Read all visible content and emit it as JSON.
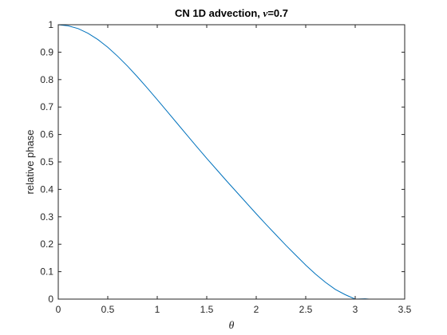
{
  "chart_data": {
    "type": "line",
    "title_prefix": "CN 1D advection, ",
    "title_symbol": "ν",
    "title_suffix": "=0.7",
    "xlabel": "θ",
    "ylabel": "relative phase",
    "xlim": [
      0,
      3.5
    ],
    "ylim": [
      0,
      1
    ],
    "xticks": [
      "0",
      "0.5",
      "1",
      "1.5",
      "2",
      "2.5",
      "3",
      "3.5"
    ],
    "yticks": [
      "0",
      "0.1",
      "0.2",
      "0.3",
      "0.4",
      "0.5",
      "0.6",
      "0.7",
      "0.8",
      "0.9",
      "1"
    ],
    "grid": false,
    "series": [
      {
        "color": "#0072bd",
        "x": [
          0,
          0.1,
          0.2,
          0.3,
          0.4,
          0.5,
          0.6,
          0.7,
          0.8,
          0.9,
          1.0,
          1.1,
          1.2,
          1.3,
          1.4,
          1.5,
          1.6,
          1.7,
          1.8,
          1.9,
          2.0,
          2.1,
          2.2,
          2.3,
          2.4,
          2.5,
          2.6,
          2.7,
          2.8,
          2.9,
          3.0,
          3.1,
          3.1416
        ],
        "y": [
          1.0,
          0.996,
          0.986,
          0.969,
          0.946,
          0.918,
          0.885,
          0.849,
          0.81,
          0.769,
          0.727,
          0.684,
          0.641,
          0.598,
          0.555,
          0.513,
          0.472,
          0.431,
          0.391,
          0.351,
          0.311,
          0.272,
          0.234,
          0.196,
          0.16,
          0.124,
          0.091,
          0.061,
          0.035,
          0.016,
          0.0,
          0.001,
          0.0
        ]
      }
    ]
  }
}
